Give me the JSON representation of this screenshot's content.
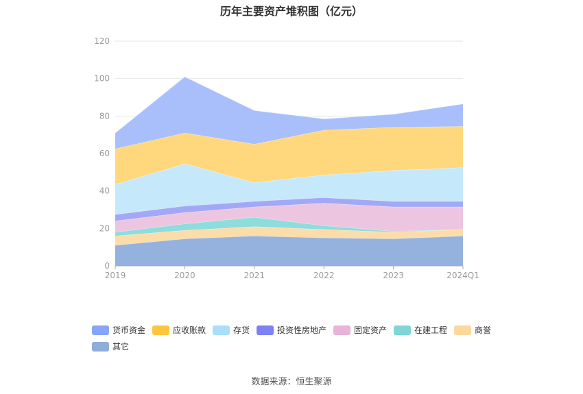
{
  "title": "历年主要资产堆积图（亿元）",
  "source": "数据来源：恒生聚源",
  "chart_data": {
    "type": "area",
    "stacked": true,
    "categories": [
      "2019",
      "2020",
      "2021",
      "2022",
      "2023",
      "2024Q1"
    ],
    "ylim": [
      0,
      120
    ],
    "yticks": [
      0,
      20,
      40,
      60,
      80,
      100,
      120
    ],
    "grid": true,
    "legend_position": "bottom",
    "series": [
      {
        "name": "其它",
        "color": "#94b2dd",
        "values": [
          11,
          14.5,
          16,
          15,
          14.5,
          16
        ]
      },
      {
        "name": "商誉",
        "color": "#fcdca8",
        "values": [
          5,
          4.5,
          5,
          4.5,
          3.5,
          3.5
        ]
      },
      {
        "name": "在建工程",
        "color": "#8fdcdc",
        "values": [
          2,
          3.5,
          5,
          2,
          0.5,
          0
        ]
      },
      {
        "name": "固定资产",
        "color": "#ecc6e0",
        "values": [
          6,
          6,
          5.5,
          12,
          13,
          12
        ]
      },
      {
        "name": "投资性房地产",
        "color": "#a3a8f6",
        "values": [
          3.5,
          3.5,
          3,
          3,
          3,
          3
        ]
      },
      {
        "name": "存货",
        "color": "#c5e9fb",
        "values": [
          16,
          22.5,
          10,
          12,
          16.5,
          18
        ]
      },
      {
        "name": "应收账款",
        "color": "#ffd87e",
        "values": [
          19,
          16.5,
          20.5,
          24,
          23,
          22
        ]
      },
      {
        "name": "货币资金",
        "color": "#a9bffb",
        "values": [
          8.5,
          30,
          18,
          6,
          7,
          12
        ]
      }
    ],
    "legend_order": [
      "货币资金",
      "应收账款",
      "存货",
      "投资性房地产",
      "固定资产",
      "在建工程",
      "商誉",
      "其它"
    ],
    "legend_swatches": {
      "货币资金": "#86a5fb",
      "应收账款": "#ffc53d",
      "存货": "#a9dffa",
      "投资性房地产": "#7c82f3",
      "固定资产": "#e8b4d7",
      "在建工程": "#7fd6d6",
      "商誉": "#fcd89c",
      "其它": "#8fadd9"
    }
  }
}
